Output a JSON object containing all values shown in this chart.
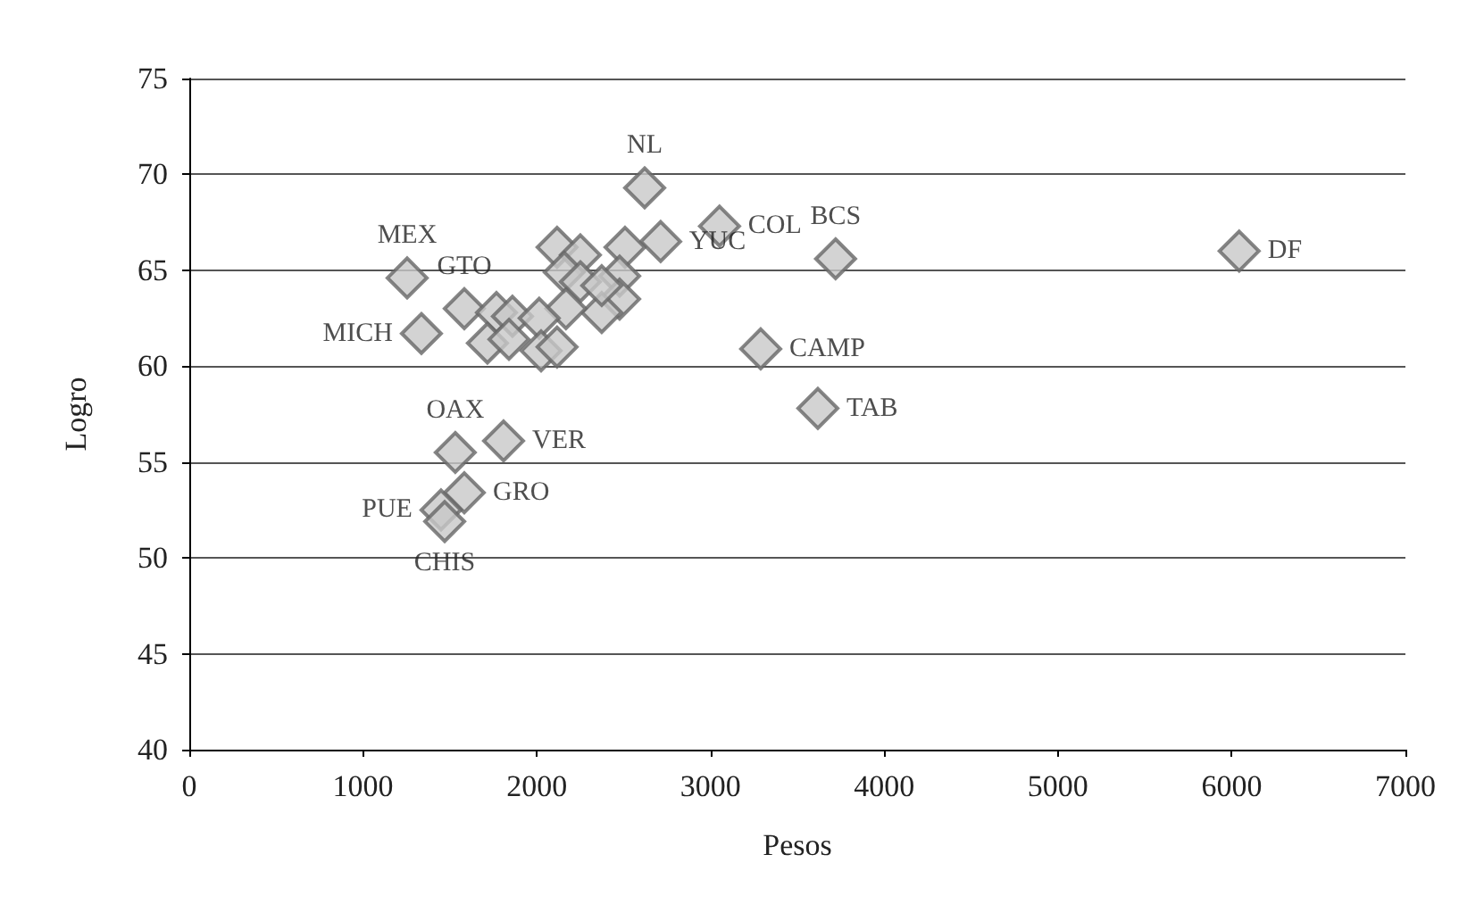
{
  "chart_data": {
    "type": "scatter",
    "xlabel": "Pesos",
    "ylabel": "Logro",
    "xlim": [
      0,
      7000
    ],
    "xticks": [
      0,
      1000,
      2000,
      3000,
      4000,
      5000,
      6000,
      7000
    ],
    "ylim": [
      40,
      75
    ],
    "yticks": [
      40,
      45,
      50,
      55,
      60,
      65,
      70,
      75
    ],
    "grid": "y",
    "marker": "diamond",
    "series": [
      {
        "color": "#c8c8c8",
        "x": [
          1254,
          1336,
          1583,
          2621,
          2713,
          3052,
          3720,
          6043,
          3289,
          3618,
          1809,
          1531,
          1583,
          1449,
          1470,
          2117,
          2251,
          2508,
          2158,
          2251,
          2477,
          2477,
          2374,
          2168,
          1768,
          1860,
          2014,
          1716,
          1840,
          2025,
          2117,
          2374
        ],
        "values": [
          64.6,
          61.7,
          63.0,
          69.3,
          66.5,
          67.3,
          65.6,
          66.0,
          60.9,
          57.8,
          56.1,
          55.5,
          53.4,
          52.5,
          51.9,
          66.2,
          65.8,
          66.2,
          64.9,
          64.4,
          64.7,
          63.5,
          62.8,
          63.0,
          62.8,
          62.6,
          62.5,
          61.2,
          61.4,
          60.8,
          61.0,
          64.2
        ]
      }
    ],
    "annotations": [
      {
        "text": "MEX",
        "x": 1254,
        "y": 64.6
      },
      {
        "text": "MICH",
        "x": 1336,
        "y": 61.7
      },
      {
        "text": "GTO",
        "x": 1583,
        "y": 63.0
      },
      {
        "text": "NL",
        "x": 2621,
        "y": 69.3
      },
      {
        "text": "YUC",
        "x": 2713,
        "y": 66.5
      },
      {
        "text": "COL",
        "x": 3052,
        "y": 67.3
      },
      {
        "text": "BCS",
        "x": 3720,
        "y": 65.6
      },
      {
        "text": "DF",
        "x": 6043,
        "y": 66.0
      },
      {
        "text": "CAMP",
        "x": 3289,
        "y": 60.9
      },
      {
        "text": "TAB",
        "x": 3618,
        "y": 57.8
      },
      {
        "text": "VER",
        "x": 1809,
        "y": 56.1
      },
      {
        "text": "OAX",
        "x": 1531,
        "y": 55.5
      },
      {
        "text": "GRO",
        "x": 1583,
        "y": 53.4
      },
      {
        "text": "PUE",
        "x": 1449,
        "y": 52.5
      },
      {
        "text": "CHIS",
        "x": 1470,
        "y": 51.9
      }
    ]
  }
}
